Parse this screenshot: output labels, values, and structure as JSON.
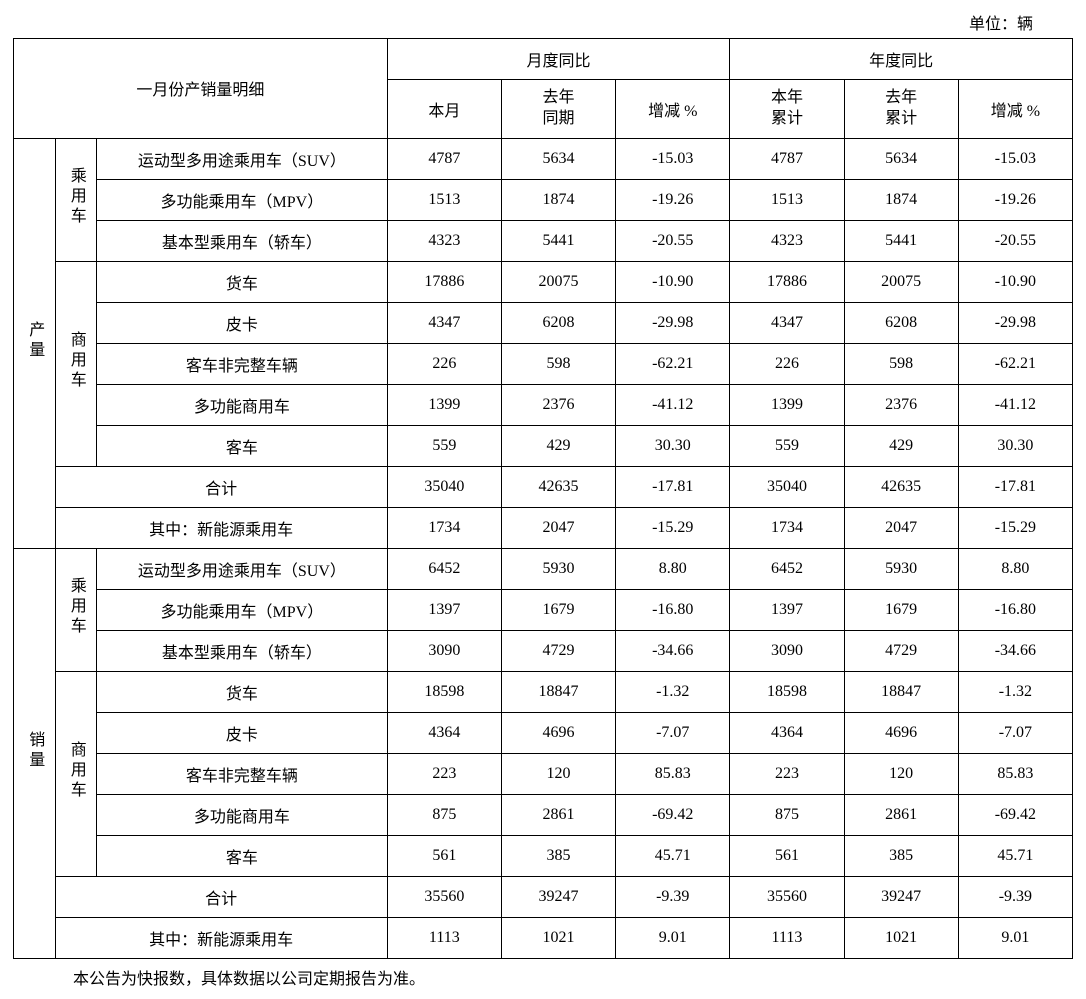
{
  "unit": "单位：辆",
  "header": {
    "title": "一月份产销量明细",
    "month_group": "月度同比",
    "year_group": "年度同比",
    "m_this": "本月",
    "m_last_l1": "去年",
    "m_last_l2": "同期",
    "m_chg": "增减 %",
    "y_this_l1": "本年",
    "y_this_l2": "累计",
    "y_last_l1": "去年",
    "y_last_l2": "累计",
    "y_chg": "增减 %"
  },
  "sections": {
    "prod": "产量",
    "sales": "销量",
    "passenger": "乘用车",
    "commercial": "商用车"
  },
  "prod": {
    "p_suv": {
      "name": "运动型多用途乘用车（SUV）",
      "m_this": "4787",
      "m_last": "5634",
      "m_chg": "-15.03",
      "y_this": "4787",
      "y_last": "5634",
      "y_chg": "-15.03"
    },
    "p_mpv": {
      "name": "多功能乘用车（MPV）",
      "m_this": "1513",
      "m_last": "1874",
      "m_chg": "-19.26",
      "y_this": "1513",
      "y_last": "1874",
      "y_chg": "-19.26"
    },
    "p_sedan": {
      "name": "基本型乘用车（轿车）",
      "m_this": "4323",
      "m_last": "5441",
      "m_chg": "-20.55",
      "y_this": "4323",
      "y_last": "5441",
      "y_chg": "-20.55"
    },
    "c_truck": {
      "name": "货车",
      "m_this": "17886",
      "m_last": "20075",
      "m_chg": "-10.90",
      "y_this": "17886",
      "y_last": "20075",
      "y_chg": "-10.90"
    },
    "c_pickup": {
      "name": "皮卡",
      "m_this": "4347",
      "m_last": "6208",
      "m_chg": "-29.98",
      "y_this": "4347",
      "y_last": "6208",
      "y_chg": "-29.98"
    },
    "c_busin": {
      "name": "客车非完整车辆",
      "m_this": "226",
      "m_last": "598",
      "m_chg": "-62.21",
      "y_this": "226",
      "y_last": "598",
      "y_chg": "-62.21"
    },
    "c_multi": {
      "name": "多功能商用车",
      "m_this": "1399",
      "m_last": "2376",
      "m_chg": "-41.12",
      "y_this": "1399",
      "y_last": "2376",
      "y_chg": "-41.12"
    },
    "c_bus": {
      "name": "客车",
      "m_this": "559",
      "m_last": "429",
      "m_chg": "30.30",
      "y_this": "559",
      "y_last": "429",
      "y_chg": "30.30"
    },
    "total": {
      "name": "合计",
      "m_this": "35040",
      "m_last": "42635",
      "m_chg": "-17.81",
      "y_this": "35040",
      "y_last": "42635",
      "y_chg": "-17.81"
    },
    "nev": {
      "name": "其中：新能源乘用车",
      "m_this": "1734",
      "m_last": "2047",
      "m_chg": "-15.29",
      "y_this": "1734",
      "y_last": "2047",
      "y_chg": "-15.29"
    }
  },
  "sales": {
    "p_suv": {
      "name": "运动型多用途乘用车（SUV）",
      "m_this": "6452",
      "m_last": "5930",
      "m_chg": "8.80",
      "y_this": "6452",
      "y_last": "5930",
      "y_chg": "8.80"
    },
    "p_mpv": {
      "name": "多功能乘用车（MPV）",
      "m_this": "1397",
      "m_last": "1679",
      "m_chg": "-16.80",
      "y_this": "1397",
      "y_last": "1679",
      "y_chg": "-16.80"
    },
    "p_sedan": {
      "name": "基本型乘用车（轿车）",
      "m_this": "3090",
      "m_last": "4729",
      "m_chg": "-34.66",
      "y_this": "3090",
      "y_last": "4729",
      "y_chg": "-34.66"
    },
    "c_truck": {
      "name": "货车",
      "m_this": "18598",
      "m_last": "18847",
      "m_chg": "-1.32",
      "y_this": "18598",
      "y_last": "18847",
      "y_chg": "-1.32"
    },
    "c_pickup": {
      "name": "皮卡",
      "m_this": "4364",
      "m_last": "4696",
      "m_chg": "-7.07",
      "y_this": "4364",
      "y_last": "4696",
      "y_chg": "-7.07"
    },
    "c_busin": {
      "name": "客车非完整车辆",
      "m_this": "223",
      "m_last": "120",
      "m_chg": "85.83",
      "y_this": "223",
      "y_last": "120",
      "y_chg": "85.83"
    },
    "c_multi": {
      "name": "多功能商用车",
      "m_this": "875",
      "m_last": "2861",
      "m_chg": "-69.42",
      "y_this": "875",
      "y_last": "2861",
      "y_chg": "-69.42"
    },
    "c_bus": {
      "name": "客车",
      "m_this": "561",
      "m_last": "385",
      "m_chg": "45.71",
      "y_this": "561",
      "y_last": "385",
      "y_chg": "45.71"
    },
    "total": {
      "name": "合计",
      "m_this": "35560",
      "m_last": "39247",
      "m_chg": "-9.39",
      "y_this": "35560",
      "y_last": "39247",
      "y_chg": "-9.39"
    },
    "nev": {
      "name": "其中：新能源乘用车",
      "m_this": "1113",
      "m_last": "1021",
      "m_chg": "9.01",
      "y_this": "1113",
      "y_last": "1021",
      "y_chg": "9.01"
    }
  },
  "footnote": "本公告为快报数，具体数据以公司定期报告为准。",
  "style": {
    "font_family": "SimSun, 宋体, serif",
    "font_size_pt": 12,
    "border_color": "#000000",
    "background_color": "#ffffff",
    "text_color": "#000000"
  }
}
